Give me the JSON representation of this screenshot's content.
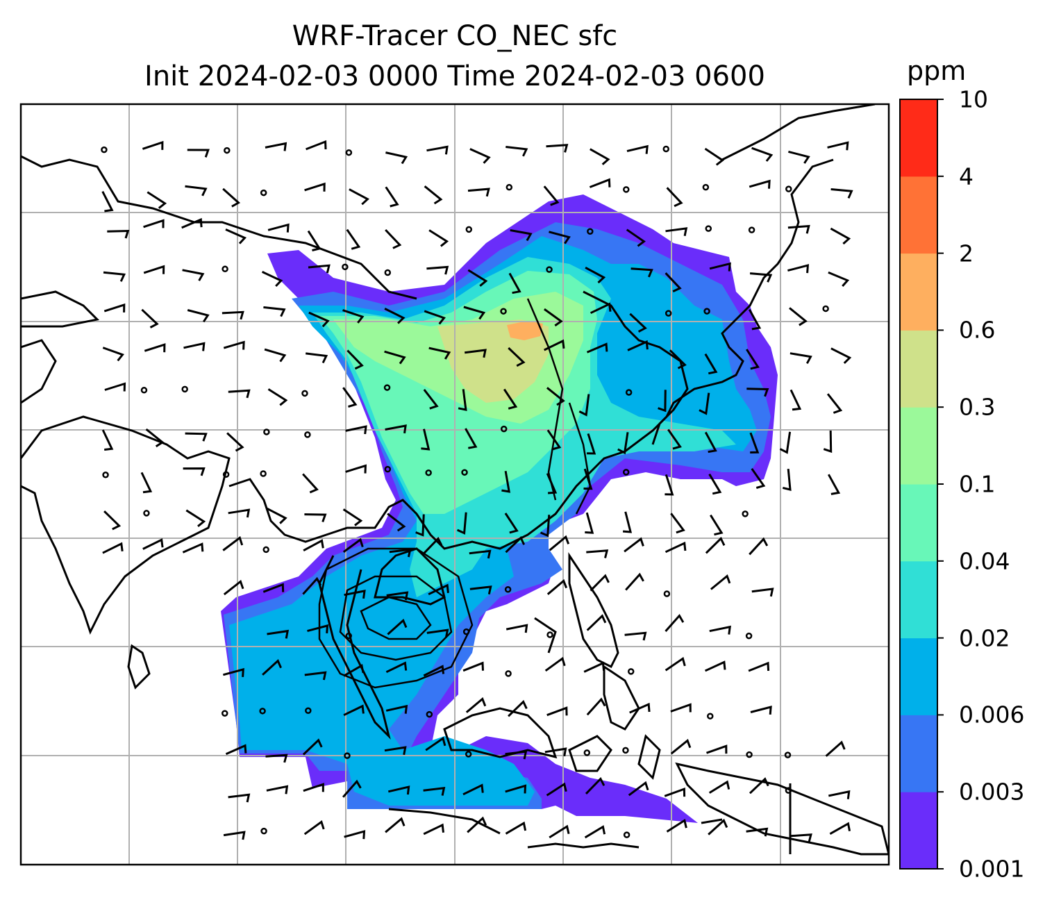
{
  "title": {
    "line1": "WRF-Tracer CO_NEC sfc",
    "line2": "Init 2024-02-03 0000 Time 2024-02-03 0600"
  },
  "colorbar": {
    "unit": "ppm",
    "ticks": [
      "10",
      "4",
      "2",
      "0.6",
      "0.3",
      "0.1",
      "0.04",
      "0.02",
      "0.006",
      "0.003",
      "0.001"
    ],
    "colors": [
      "#6a2dfa",
      "#3776f4",
      "#00b0ea",
      "#30dfd6",
      "#68f7b8",
      "#9bf99a",
      "#cfe18a",
      "#feaf5f",
      "#ff7236",
      "#ff2b18"
    ]
  },
  "map_layers": {
    "concentration": "filled contours",
    "wind": "barbs",
    "coastlines": "black",
    "gridlines": "grey"
  }
}
